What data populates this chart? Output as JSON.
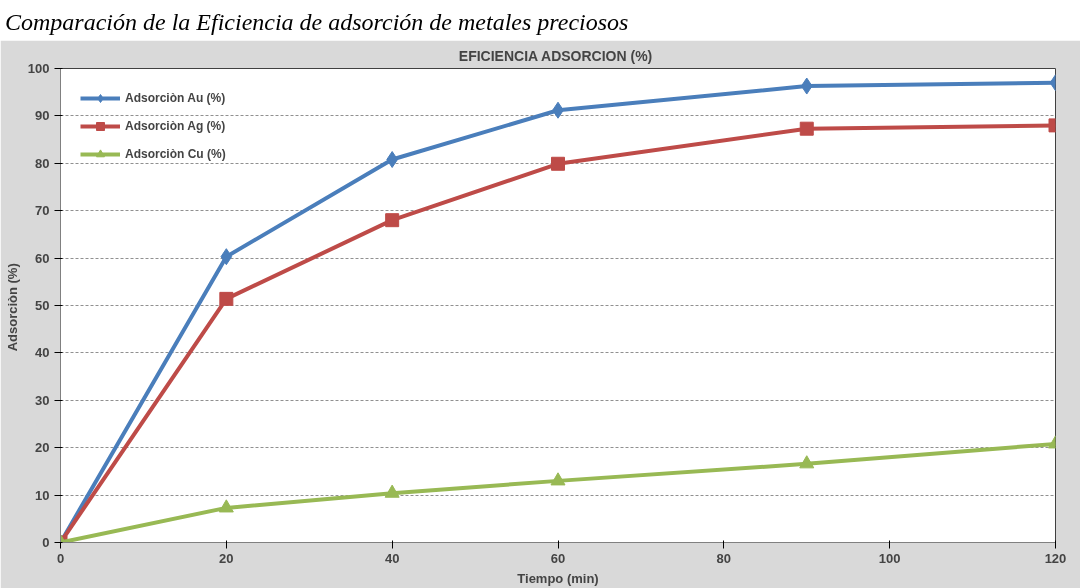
{
  "chart_data": {
    "type": "line",
    "title": "EFICIENCIA ADSORCION  (%)",
    "xlabel": "Tiempo (min)",
    "ylabel": "Adsorciòn  (%)",
    "annotations": [
      "Comparación de la Eficiencia de adsorción de metales preciosos"
    ],
    "x": [
      0,
      20,
      40,
      60,
      90,
      120
    ],
    "series": [
      {
        "name": "Adsorciòn Au (%)",
        "color": "#4a7ebb",
        "marker": "diamond",
        "values": [
          0,
          60.3,
          80.8,
          91.2,
          96.3,
          97
        ]
      },
      {
        "name": "Adsorciòn Ag (%)",
        "color": "#be4b48",
        "marker": "square",
        "values": [
          0,
          51.4,
          68,
          79.9,
          87.3,
          88
        ]
      },
      {
        "name": "Adsorciòn Cu (%)",
        "color": "#98b954",
        "marker": "triangle",
        "values": [
          0,
          7.3,
          10.4,
          13,
          16.6,
          20.8
        ]
      }
    ],
    "xlim": [
      0,
      120
    ],
    "xticks": [
      0,
      20,
      40,
      60,
      80,
      100,
      120
    ],
    "ylim": [
      0,
      100
    ],
    "yticks": [
      0,
      10,
      20,
      30,
      40,
      50,
      60,
      70,
      80,
      90,
      100
    ],
    "grid": "y",
    "legend": "top left"
  }
}
